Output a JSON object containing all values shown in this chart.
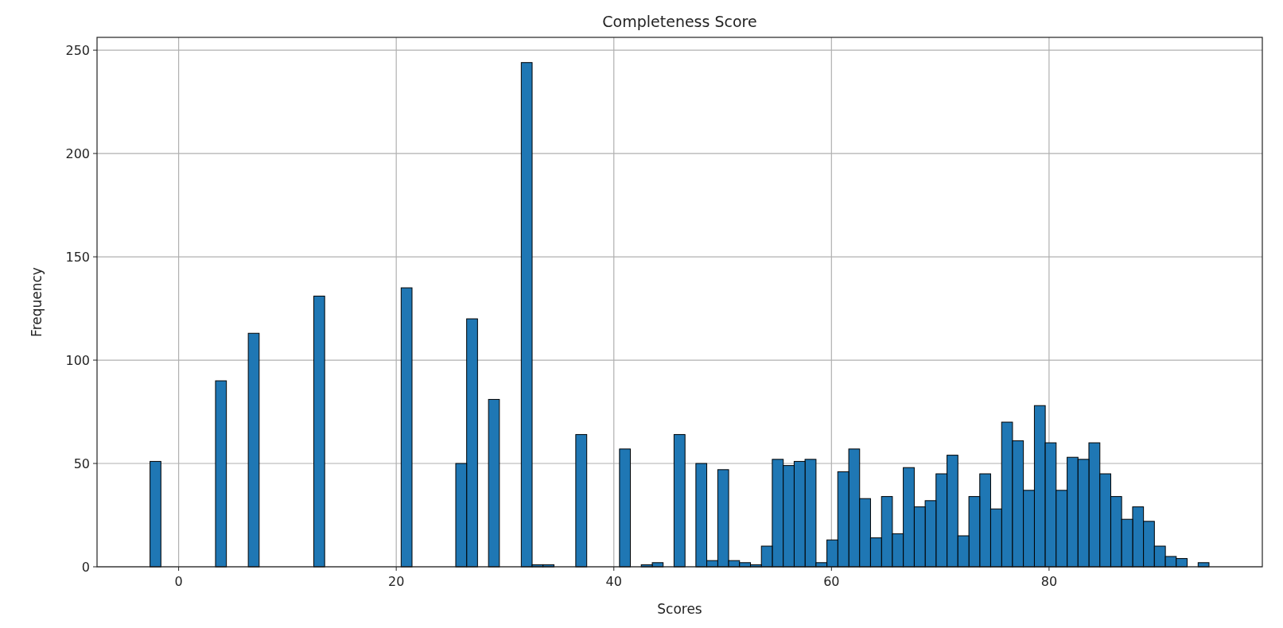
{
  "chart_data": {
    "type": "histogram",
    "title": "Completeness Score",
    "xlabel": "Scores",
    "ylabel": "Frequency",
    "bins": [
      -2.63,
      -1.63,
      -0.62,
      0.38,
      1.38,
      2.39,
      3.39,
      4.39,
      5.4,
      6.4,
      7.4,
      8.41,
      9.41,
      10.41,
      11.42,
      12.42,
      13.42,
      14.43,
      15.43,
      16.43,
      17.44,
      18.44,
      19.44,
      20.45,
      21.45,
      22.46,
      23.46,
      24.46,
      25.47,
      26.47,
      27.47,
      28.48,
      29.48,
      30.48,
      31.49,
      32.49,
      33.49,
      34.5,
      35.5,
      36.5,
      37.51,
      38.51,
      39.51,
      40.52,
      41.52,
      42.52,
      43.53,
      44.53,
      45.53,
      46.54,
      47.54,
      48.54,
      49.55,
      50.55,
      51.55,
      52.56,
      53.56,
      54.56,
      55.57,
      56.57,
      57.57,
      58.58,
      59.58,
      60.58,
      61.59,
      62.59,
      63.59,
      64.6,
      65.6,
      66.6,
      67.61,
      68.61,
      69.61,
      70.62,
      71.62,
      72.63,
      73.63,
      74.63,
      75.64,
      76.64,
      77.64,
      78.65,
      79.65,
      80.65,
      81.66,
      82.66,
      83.66,
      84.67,
      85.67,
      86.67,
      87.68,
      88.68,
      89.68,
      90.69,
      91.69,
      92.69,
      93.7,
      94.7
    ],
    "values": [
      51,
      0,
      0,
      0,
      0,
      0,
      90,
      0,
      0,
      113,
      0,
      0,
      0,
      0,
      0,
      131,
      0,
      0,
      0,
      0,
      0,
      0,
      0,
      135,
      0,
      0,
      0,
      0,
      50,
      120,
      0,
      81,
      0,
      0,
      244,
      1,
      1,
      0,
      0,
      64,
      0,
      0,
      0,
      57,
      0,
      1,
      2,
      0,
      64,
      0,
      50,
      3,
      47,
      3,
      2,
      1,
      10,
      52,
      49,
      51,
      52,
      2,
      13,
      46,
      57,
      33,
      14,
      34,
      16,
      48,
      29,
      32,
      45,
      54,
      15,
      34,
      45,
      28,
      70,
      61,
      37,
      78,
      60,
      37,
      53,
      52,
      60,
      45,
      34,
      23,
      29,
      22,
      10,
      5,
      4,
      0,
      2
    ],
    "color": "#1f77b4",
    "xlim": [
      -7.5,
      99.6
    ],
    "ylim": [
      0,
      256.2
    ],
    "xticks": [
      0,
      20,
      40,
      60,
      80
    ],
    "yticks": [
      0,
      50,
      100,
      150,
      200,
      250
    ],
    "grid": true
  }
}
